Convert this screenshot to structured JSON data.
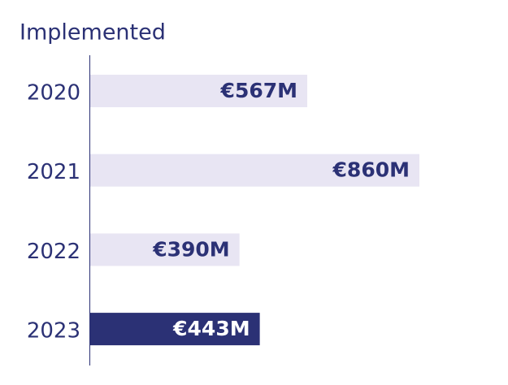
{
  "chart_data": {
    "type": "bar",
    "orientation": "horizontal",
    "title": "Implemented",
    "categories": [
      "2020",
      "2021",
      "2022",
      "2023"
    ],
    "values": [
      567,
      860,
      390,
      443
    ],
    "value_labels": [
      "€567M",
      "€860M",
      "€390M",
      "€443M"
    ],
    "colors": [
      "#e8e5f3",
      "#e8e5f3",
      "#e8e5f3",
      "#2b3175"
    ]
  }
}
